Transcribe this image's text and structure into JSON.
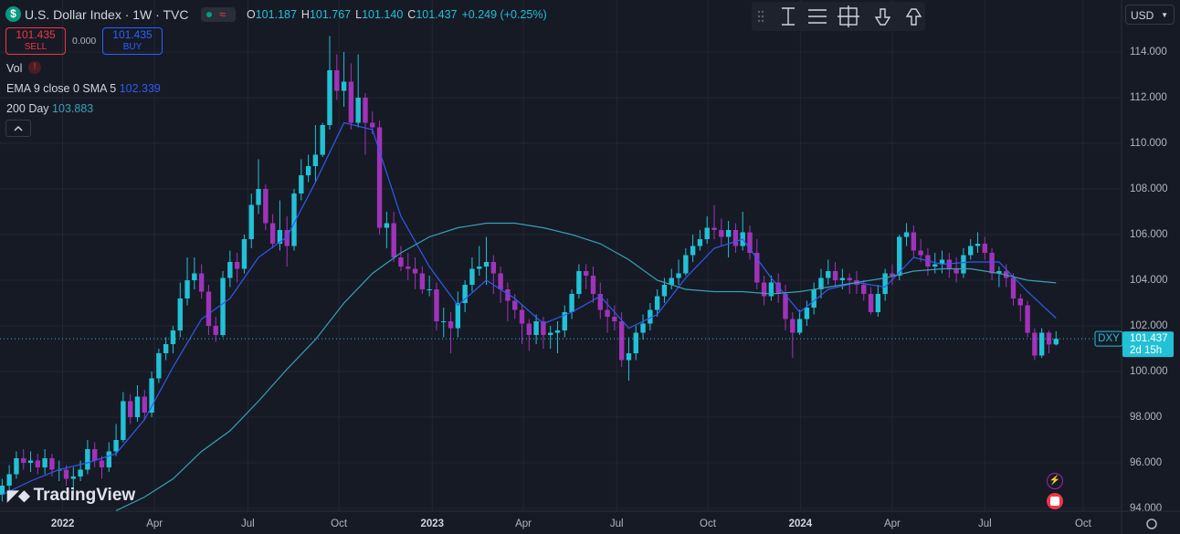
{
  "header": {
    "symbol_icon": "$",
    "title": "U.S. Dollar Index · 1W · TVC",
    "mode_icon": "≈",
    "ohlc": [
      {
        "key": "O",
        "value": "101.187"
      },
      {
        "key": "H",
        "value": "101.767"
      },
      {
        "key": "L",
        "value": "101.140"
      },
      {
        "key": "C",
        "value": "101.437"
      }
    ],
    "change": "+0.249 (+0.25%)",
    "sell": {
      "price": "101.435",
      "label": "SELL"
    },
    "spread": "0.000",
    "buy": {
      "price": "101.435",
      "label": "BUY"
    },
    "vol": "Vol",
    "vol_alert": "!",
    "currency": "USD",
    "logo": "TradingView"
  },
  "chart_data": {
    "type": "candlestick",
    "xlim": [
      -0.3,
      157.2
    ],
    "ylim": [
      93.88,
      116.28
    ],
    "xticks": [
      {
        "value": 8.5,
        "label": "2022"
      },
      {
        "value": 21.4,
        "label": "Apr"
      },
      {
        "value": 34.5,
        "label": "Jul"
      },
      {
        "value": 47.3,
        "label": "Oct"
      },
      {
        "value": 60.4,
        "label": "2023"
      },
      {
        "value": 73.2,
        "label": "Apr"
      },
      {
        "value": 86.3,
        "label": "Jul"
      },
      {
        "value": 99.1,
        "label": "Oct"
      },
      {
        "value": 112.1,
        "label": "2024"
      },
      {
        "value": 125,
        "label": "Apr"
      },
      {
        "value": 138,
        "label": "Jul"
      },
      {
        "value": 151.8,
        "label": "Oct"
      }
    ],
    "yticks": [
      {
        "value": 94,
        "label": "94.000"
      },
      {
        "value": 96,
        "label": "96.000"
      },
      {
        "value": 98,
        "label": "98.000"
      },
      {
        "value": 100,
        "label": "100.000"
      },
      {
        "value": 102,
        "label": "102.000"
      },
      {
        "value": 104,
        "label": "104.000"
      },
      {
        "value": 106,
        "label": "106.000"
      },
      {
        "value": 108,
        "label": "108.000"
      },
      {
        "value": 110,
        "label": "110.000"
      },
      {
        "value": 112,
        "label": "112.000"
      },
      {
        "value": 114,
        "label": "114.000"
      }
    ],
    "grid": true,
    "x": [
      0,
      1,
      2,
      3,
      4,
      5,
      6,
      7,
      8,
      9,
      10,
      11,
      12,
      13,
      14,
      15,
      16,
      17,
      18,
      19,
      20,
      21,
      22,
      23,
      24,
      25,
      26,
      27,
      28,
      29,
      30,
      31,
      32,
      33,
      34,
      35,
      36,
      37,
      38,
      39,
      40,
      41,
      42,
      43,
      44,
      45,
      46,
      47,
      48,
      49,
      50,
      51,
      52,
      53,
      54,
      55,
      56,
      57,
      58,
      59,
      60,
      61,
      62,
      63,
      64,
      65,
      66,
      67,
      68,
      69,
      70,
      71,
      72,
      73,
      74,
      75,
      76,
      77,
      78,
      79,
      80,
      81,
      82,
      83,
      84,
      85,
      86,
      87,
      88,
      89,
      90,
      91,
      92,
      93,
      94,
      95,
      96,
      97,
      98,
      99,
      100,
      101,
      102,
      103,
      104,
      105,
      106,
      107,
      108,
      109,
      110,
      111,
      112,
      113,
      114,
      115,
      116,
      117,
      118,
      119,
      120,
      121,
      122,
      123,
      124,
      125,
      126,
      127,
      128,
      129,
      130,
      131,
      132,
      133,
      134,
      135,
      136,
      137,
      138,
      139,
      140,
      141,
      142,
      143,
      144,
      145,
      146,
      147,
      148
    ],
    "series": [
      {
        "name": "DXY",
        "up_color": "#22c1d6",
        "down_color": "#a033b9",
        "open": [
          94.6,
          95.0,
          95.5,
          96.2,
          96.0,
          96.1,
          95.8,
          96.2,
          95.7,
          95.7,
          95.3,
          95.4,
          95.7,
          96.6,
          96.1,
          95.8,
          96.5,
          97.0,
          98.7,
          98.0,
          98.9,
          98.2,
          99.7,
          100.8,
          101.2,
          101.8,
          103.2,
          104.0,
          104.3,
          103.5,
          102.0,
          101.6,
          104.1,
          104.8,
          104.5,
          105.8,
          107.3,
          108.0,
          106.5,
          105.6,
          106.2,
          105.5,
          107.8,
          108.6,
          109.0,
          109.5,
          110.8,
          113.2,
          112.3,
          112.7,
          110.9,
          112.0,
          110.9,
          110.7,
          106.3,
          106.5,
          105.0,
          104.6,
          104.5,
          104.3,
          103.6,
          103.6,
          102.2,
          102.2,
          101.9,
          103.0,
          103.8,
          104.5,
          104.6,
          104.8,
          104.3,
          103.6,
          103.1,
          102.7,
          102.1,
          101.6,
          102.2,
          101.6,
          101.7,
          101.8,
          102.6,
          103.4,
          104.4,
          104.2,
          103.4,
          102.7,
          102.4,
          102.2,
          100.5,
          100.8,
          101.7,
          102.1,
          102.7,
          103.3,
          103.8,
          104.1,
          104.3,
          105.1,
          105.5,
          105.8,
          106.3,
          106.2,
          105.9,
          106.2,
          105.5,
          106.1,
          105.2,
          103.9,
          103.3,
          103.9,
          103.4,
          102.3,
          101.7,
          102.3,
          102.8,
          103.6,
          104.1,
          104.4,
          104.0,
          104.1,
          104.0,
          103.8,
          103.4,
          102.6,
          103.4,
          104.3,
          104.2,
          105.9,
          106.1,
          105.3,
          105.1,
          104.6,
          104.7,
          104.9,
          104.5,
          104.3,
          105.1,
          105.5,
          105.6,
          105.2,
          104.3,
          104.4,
          104.1,
          103.2,
          102.9,
          101.7,
          100.7,
          101.7,
          101.187
        ],
        "high": [
          95.3,
          95.9,
          96.5,
          96.6,
          96.5,
          96.4,
          96.6,
          96.4,
          96.1,
          95.9,
          95.8,
          96.1,
          97.0,
          96.9,
          96.3,
          96.9,
          97.7,
          99.1,
          99.0,
          99.4,
          99.2,
          100.0,
          101.0,
          101.5,
          102.0,
          103.9,
          105.0,
          105.0,
          104.7,
          103.8,
          102.4,
          104.4,
          105.3,
          105.2,
          106.0,
          107.8,
          109.3,
          108.2,
          106.9,
          107.5,
          106.8,
          108.0,
          109.3,
          109.5,
          110.8,
          110.9,
          114.7,
          113.9,
          114.0,
          113.5,
          113.9,
          112.2,
          111.4,
          111.0,
          107.0,
          107.0,
          105.5,
          105.2,
          105.0,
          104.6,
          104.2,
          103.9,
          102.8,
          102.6,
          103.5,
          104.0,
          105.0,
          105.5,
          105.9,
          105.1,
          104.6,
          103.9,
          103.4,
          102.9,
          102.3,
          102.5,
          102.4,
          102.0,
          102.2,
          102.9,
          103.6,
          104.7,
          104.7,
          104.6,
          103.9,
          103.2,
          102.9,
          102.6,
          101.5,
          102.0,
          102.5,
          103.0,
          103.6,
          104.1,
          104.5,
          104.9,
          105.4,
          106.0,
          106.2,
          106.8,
          107.3,
          106.7,
          106.6,
          106.5,
          107.0,
          106.4,
          105.8,
          104.2,
          104.2,
          104.3,
          103.8,
          102.6,
          102.7,
          103.1,
          103.9,
          104.5,
          104.9,
          104.8,
          104.5,
          104.3,
          104.4,
          104.0,
          103.7,
          103.8,
          104.5,
          104.7,
          106.0,
          106.5,
          106.4,
          105.8,
          105.4,
          105.2,
          105.3,
          105.2,
          105.0,
          105.4,
          105.8,
          106.1,
          105.9,
          105.4,
          104.6,
          104.7,
          104.3,
          103.4,
          103.1,
          101.9,
          101.9,
          101.8,
          101.767
        ],
        "low": [
          94.3,
          94.7,
          95.3,
          95.7,
          95.6,
          95.5,
          95.5,
          95.4,
          95.2,
          95.0,
          94.6,
          95.2,
          95.5,
          95.8,
          95.3,
          95.6,
          96.3,
          96.9,
          97.7,
          97.8,
          97.9,
          98.0,
          99.5,
          100.5,
          100.8,
          101.5,
          102.9,
          103.6,
          103.2,
          101.6,
          101.3,
          101.5,
          103.7,
          103.9,
          104.3,
          105.4,
          106.9,
          106.2,
          105.4,
          105.3,
          104.6,
          105.3,
          107.5,
          108.3,
          108.3,
          109.4,
          110.6,
          111.9,
          111.6,
          110.6,
          110.7,
          109.5,
          110.4,
          106.0,
          105.4,
          104.8,
          104.4,
          104.0,
          103.6,
          103.4,
          103.3,
          101.8,
          101.5,
          100.8,
          101.5,
          102.6,
          103.5,
          104.2,
          103.8,
          103.4,
          103.0,
          102.2,
          102.3,
          101.2,
          100.9,
          101.2,
          101.0,
          101.0,
          100.8,
          101.5,
          102.3,
          103.2,
          103.6,
          103.0,
          102.3,
          101.7,
          101.8,
          100.2,
          99.6,
          100.5,
          101.4,
          101.8,
          102.4,
          103.0,
          103.6,
          103.8,
          104.2,
          104.8,
          105.3,
          105.6,
          105.8,
          105.5,
          105.0,
          105.2,
          105.3,
          104.9,
          103.6,
          102.9,
          103.1,
          103.0,
          101.8,
          100.6,
          101.6,
          102.0,
          102.5,
          103.2,
          103.8,
          103.7,
          103.6,
          103.4,
          103.4,
          103.1,
          102.5,
          102.4,
          103.1,
          103.8,
          104.0,
          105.5,
          105.0,
          104.8,
          104.2,
          104.3,
          104.3,
          104.1,
          103.9,
          104.1,
          104.9,
          105.2,
          104.9,
          104.0,
          103.7,
          103.7,
          102.9,
          102.2,
          101.5,
          100.5,
          100.6,
          100.8,
          101.14
        ],
        "close": [
          95.0,
          95.5,
          96.2,
          96.0,
          96.1,
          95.8,
          96.2,
          95.7,
          95.7,
          95.3,
          95.4,
          95.7,
          96.6,
          96.1,
          95.8,
          96.5,
          97.0,
          98.7,
          98.0,
          98.9,
          98.2,
          99.7,
          100.8,
          101.2,
          101.8,
          103.2,
          104.0,
          104.3,
          103.5,
          102.0,
          101.6,
          104.1,
          104.8,
          104.5,
          105.8,
          107.3,
          108.0,
          106.5,
          105.6,
          106.2,
          105.5,
          107.8,
          108.6,
          109.0,
          109.5,
          110.8,
          113.2,
          112.3,
          112.7,
          110.9,
          112.0,
          110.9,
          110.7,
          106.3,
          106.5,
          105.0,
          104.6,
          104.5,
          104.3,
          103.6,
          103.6,
          102.2,
          102.2,
          101.9,
          103.0,
          103.8,
          104.5,
          104.6,
          104.8,
          104.3,
          103.6,
          103.1,
          102.7,
          102.1,
          101.6,
          102.2,
          101.6,
          101.7,
          101.8,
          102.6,
          103.4,
          104.4,
          104.2,
          103.4,
          102.7,
          102.4,
          102.2,
          100.5,
          100.8,
          101.7,
          102.1,
          102.7,
          103.3,
          103.8,
          104.1,
          104.3,
          105.1,
          105.5,
          105.8,
          106.3,
          106.2,
          105.9,
          106.2,
          105.5,
          106.1,
          105.2,
          103.9,
          103.3,
          103.9,
          103.4,
          102.3,
          101.7,
          102.3,
          102.8,
          103.6,
          104.1,
          104.4,
          104.0,
          104.1,
          104.0,
          103.8,
          103.4,
          102.6,
          103.4,
          104.3,
          104.2,
          105.9,
          106.1,
          105.3,
          105.1,
          104.6,
          104.7,
          104.9,
          104.5,
          104.3,
          105.1,
          105.5,
          105.6,
          105.2,
          104.3,
          104.4,
          104.1,
          103.2,
          102.9,
          101.7,
          100.7,
          101.7,
          101.187,
          101.437
        ]
      }
    ],
    "lines": [
      {
        "name": "EMA 9 close 0 SMA 5",
        "color": "#2f5bf0",
        "x": [
          0,
          4,
          8,
          12,
          16,
          20,
          24,
          28,
          32,
          36,
          40,
          44,
          48,
          52,
          56,
          60,
          64,
          68,
          72,
          76,
          80,
          84,
          88,
          92,
          96,
          100,
          104,
          108,
          112,
          116,
          120,
          124,
          128,
          132,
          136,
          140,
          144,
          148
        ],
        "values": [
          94.6,
          95.2,
          95.7,
          96.0,
          96.4,
          97.9,
          100.2,
          102.3,
          103.2,
          105.0,
          105.9,
          108.3,
          110.9,
          110.6,
          106.8,
          104.6,
          102.9,
          104.0,
          103.2,
          102.1,
          102.6,
          103.3,
          101.9,
          102.5,
          104.1,
          105.4,
          105.8,
          104.1,
          102.6,
          103.6,
          103.9,
          103.7,
          105.0,
          104.7,
          104.8,
          104.8,
          103.5,
          102.339
        ]
      },
      {
        "name": "200 Day",
        "color": "#3a9fb8",
        "x": [
          16,
          20,
          24,
          28,
          32,
          36,
          40,
          44,
          48,
          52,
          56,
          60,
          64,
          68,
          72,
          76,
          80,
          84,
          88,
          92,
          96,
          100,
          104,
          108,
          112,
          116,
          120,
          124,
          128,
          132,
          136,
          140,
          144,
          148
        ],
        "values": [
          93.9,
          94.5,
          95.3,
          96.5,
          97.4,
          98.7,
          100.1,
          101.4,
          103.0,
          104.3,
          105.2,
          105.9,
          106.3,
          106.5,
          106.5,
          106.3,
          106.0,
          105.6,
          104.9,
          104.0,
          103.6,
          103.5,
          103.5,
          103.4,
          103.5,
          103.7,
          103.9,
          104.1,
          104.4,
          104.5,
          104.5,
          104.3,
          104.0,
          103.883
        ]
      }
    ],
    "last_price": {
      "label": "DXY",
      "countdown": "2d 15h"
    }
  }
}
